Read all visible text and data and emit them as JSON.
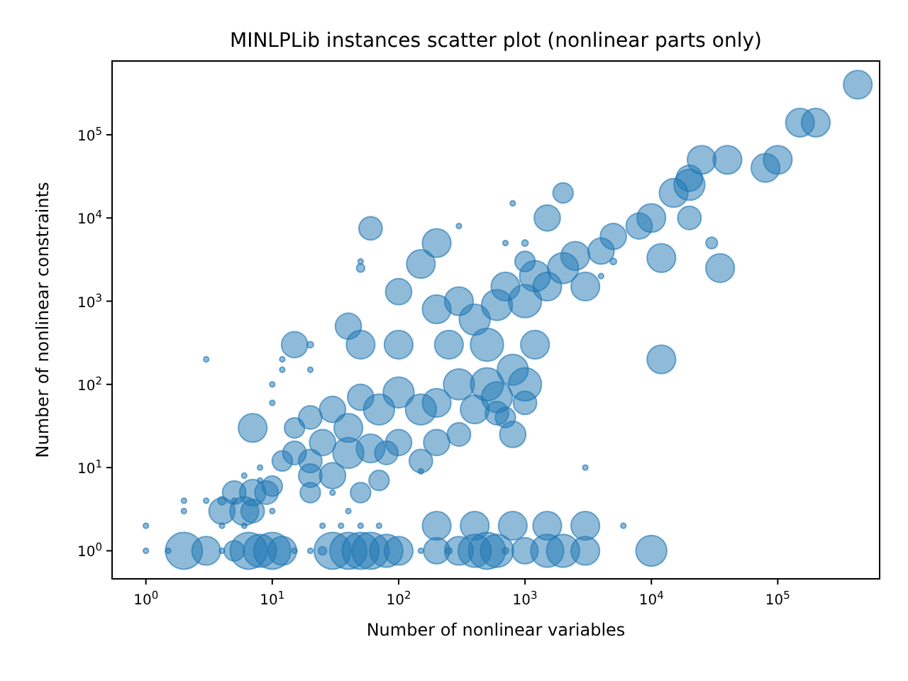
{
  "chart_data": {
    "type": "bubble",
    "title": "MINLPLib instances scatter plot (nonlinear parts only)",
    "xlabel": "Number of nonlinear variables",
    "ylabel": "Number of nonlinear constraints",
    "log": "xy",
    "xlim": [
      0.54,
      640000
    ],
    "ylim": [
      0.46,
      770000
    ],
    "xticks": [
      {
        "value": 1,
        "label": "10$^{0}$"
      },
      {
        "value": 10,
        "label": "10$^{1}$"
      },
      {
        "value": 100,
        "label": "10$^{2}$"
      },
      {
        "value": 1000,
        "label": "10$^{3}$"
      },
      {
        "value": 10000,
        "label": "10$^{4}$"
      },
      {
        "value": 100000,
        "label": "10$^{5}$"
      }
    ],
    "yticks": [
      {
        "value": 1,
        "label": "10$^{0}$"
      },
      {
        "value": 10,
        "label": "10$^{1}$"
      },
      {
        "value": 100,
        "label": "10$^{2}$"
      },
      {
        "value": 1000,
        "label": "10$^{3}$"
      },
      {
        "value": 10000,
        "label": "10$^{4}$"
      },
      {
        "value": 100000,
        "label": "10$^{5}$"
      }
    ],
    "series": [
      {
        "color": "#1f77b4",
        "x": [
          2,
          3,
          5,
          6.5,
          8,
          10,
          12,
          30,
          40,
          50,
          60,
          80,
          100,
          200,
          300,
          400,
          500,
          600,
          1000,
          1500,
          2000,
          3000,
          10000,
          1,
          1.5,
          4,
          15,
          20,
          25,
          150,
          250,
          700,
          1,
          4,
          6,
          25,
          35,
          50,
          70,
          200,
          400,
          800,
          1500,
          3000,
          6000,
          4,
          6,
          7,
          2,
          10,
          40,
          2,
          3,
          4,
          5,
          5,
          7,
          9,
          20,
          50,
          30,
          6,
          8,
          10,
          20,
          30,
          70,
          150,
          8,
          12,
          15,
          20,
          25,
          40,
          60,
          80,
          100,
          150,
          200,
          300,
          800,
          1000,
          600,
          700,
          7,
          15,
          20,
          30,
          40,
          50,
          70,
          100,
          150,
          200,
          300,
          400,
          500,
          600,
          800,
          1000,
          1200,
          10,
          10,
          12,
          12,
          3,
          20,
          20,
          15,
          40,
          50,
          100,
          100,
          150,
          200,
          200,
          250,
          300,
          400,
          500,
          600,
          700,
          1000,
          1200,
          1500,
          2000,
          2500,
          3000,
          4000,
          1500,
          2000,
          1000,
          60,
          50,
          50,
          5000,
          8000,
          10000,
          12000,
          35000,
          12000,
          15000,
          20000,
          25000,
          40000,
          20000,
          20000,
          30000,
          80000,
          100000,
          150000,
          200000,
          430000,
          800,
          700,
          1000,
          5000,
          4000,
          3000,
          300
        ],
        "values": [
          1,
          1,
          1,
          1,
          1,
          1,
          1,
          1,
          1,
          1,
          1,
          1,
          1,
          1,
          1,
          1,
          1,
          1,
          1,
          1,
          1,
          1,
          1,
          1,
          1,
          1,
          1,
          1,
          1,
          1,
          1,
          1,
          2,
          2,
          2,
          2,
          2,
          2,
          2,
          2,
          2,
          2,
          2,
          2,
          2,
          3,
          3,
          3,
          3,
          3,
          3,
          4,
          4,
          4,
          4,
          5,
          5,
          5,
          5,
          5,
          5,
          8,
          7,
          6,
          8,
          8,
          7,
          9,
          10,
          12,
          15,
          12,
          20,
          15,
          17,
          15,
          20,
          12,
          20,
          25,
          25,
          60,
          45,
          40,
          30,
          30,
          40,
          50,
          30,
          70,
          50,
          80,
          50,
          60,
          100,
          50,
          100,
          70,
          150,
          100,
          300,
          100,
          60,
          150,
          200,
          200,
          150,
          300,
          300,
          500,
          300,
          300,
          1300,
          2800,
          5000,
          800,
          300,
          1000,
          600,
          300,
          900,
          1500,
          1000,
          2000,
          1500,
          2500,
          3500,
          1500,
          4000,
          10000,
          20000,
          3000,
          7500,
          3000,
          2500,
          6000,
          8000,
          10000,
          3300,
          2500,
          200,
          20000,
          25000,
          50000,
          50000,
          30000,
          10000,
          5000,
          40000,
          50000,
          140000,
          140000,
          400000,
          15000,
          5000,
          5000,
          3000,
          2000,
          10,
          8000
        ],
        "sizes": [
          1,
          0.6,
          0.3,
          1,
          0.8,
          1,
          0.6,
          1,
          1,
          1,
          1,
          0.8,
          0.6,
          0.5,
          0.6,
          0.8,
          1,
          0.8,
          0.5,
          0.8,
          0.8,
          0.6,
          0.7,
          0.02,
          0.02,
          0.02,
          0.02,
          0.02,
          0.05,
          0.02,
          0.03,
          0.03,
          0.02,
          0.02,
          0.02,
          0.02,
          0.02,
          0.02,
          0.02,
          0.6,
          0.6,
          0.6,
          0.6,
          0.6,
          0.02,
          0.5,
          0.6,
          0.4,
          0.02,
          0.02,
          0.02,
          0.02,
          0.02,
          0.05,
          0.02,
          0.4,
          0.5,
          0.4,
          0.3,
          0.3,
          0.02,
          0.02,
          0.02,
          0.3,
          0.4,
          0.5,
          0.3,
          0.02,
          0.02,
          0.3,
          0.4,
          0.4,
          0.5,
          0.7,
          0.6,
          0.4,
          0.5,
          0.4,
          0.5,
          0.4,
          0.5,
          0.4,
          0.4,
          0.3,
          0.6,
          0.3,
          0.4,
          0.5,
          0.6,
          0.5,
          0.7,
          0.7,
          0.7,
          0.6,
          0.7,
          0.6,
          0.8,
          0.7,
          0.7,
          0.8,
          0.6,
          0.02,
          0.02,
          0.02,
          0.02,
          0.02,
          0.02,
          0.03,
          0.5,
          0.5,
          0.6,
          0.6,
          0.5,
          0.6,
          0.6,
          0.6,
          0.6,
          0.6,
          0.7,
          0.8,
          0.7,
          0.6,
          0.8,
          0.7,
          0.6,
          0.7,
          0.6,
          0.6,
          0.5,
          0.5,
          0.3,
          0.3,
          0.4,
          0.02,
          0.05,
          0.5,
          0.5,
          0.6,
          0.6,
          0.6,
          0.6,
          0.6,
          0.7,
          0.6,
          0.6,
          0.5,
          0.4,
          0.1,
          0.6,
          0.6,
          0.6,
          0.6,
          0.6,
          0.02,
          0.02,
          0.03,
          0.03,
          0.02,
          0.02,
          0.02
        ]
      }
    ]
  }
}
